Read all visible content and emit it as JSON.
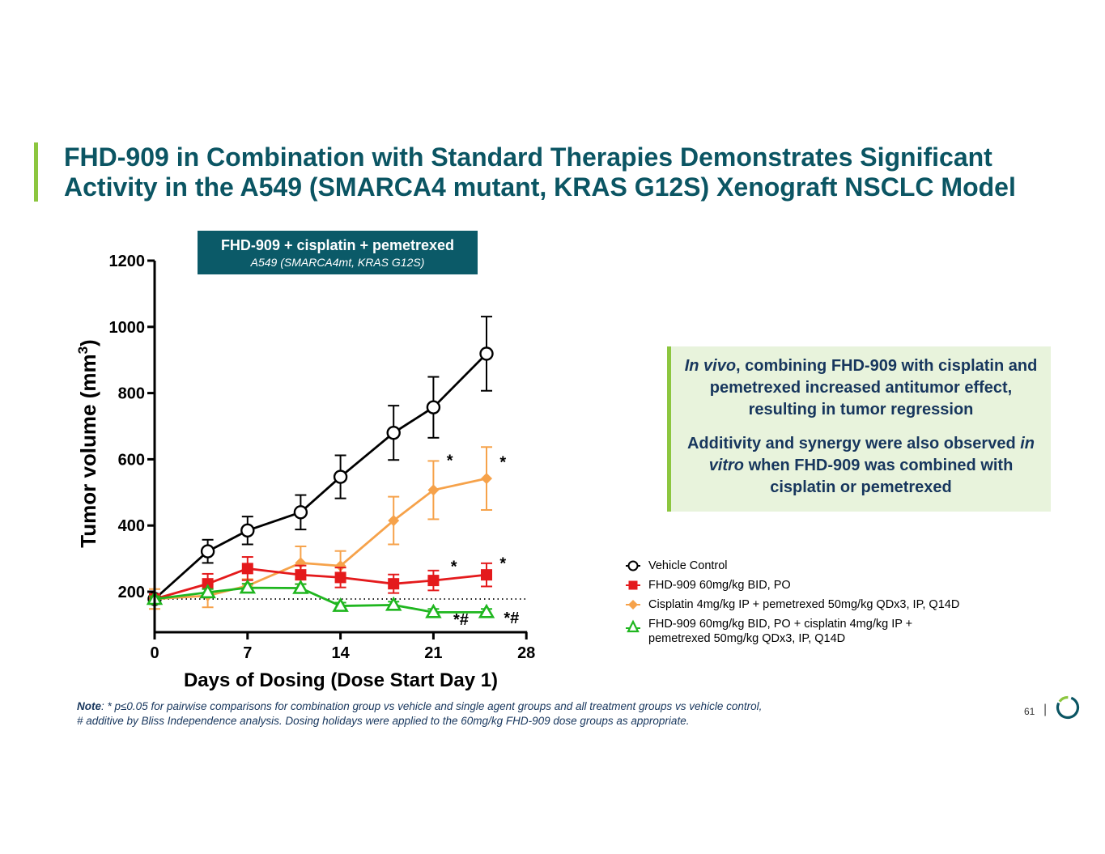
{
  "title": {
    "line1": "FHD-909 in Combination with Standard Therapies Demonstrates Significant",
    "line2": "Activity in the A549 (SMARCA4 mutant, KRAS G12S) Xenograft NSCLC Model"
  },
  "chart_badge": {
    "main": "FHD-909 + cisplatin + pemetrexed",
    "sub": "A549 (SMARCA4mt, KRAS G12S)"
  },
  "chart_data": {
    "type": "line",
    "title": "FHD-909 + cisplatin + pemetrexed",
    "subtitle": "A549 (SMARCA4mt, KRAS G12S)",
    "xlabel": "Days of Dosing (Dose Start Day 1)",
    "ylabel_main": "Tumor volume (mm",
    "ylabel_sup": "3",
    "ylabel_close": ")",
    "xlim": [
      0,
      28
    ],
    "ylim": [
      80,
      1200
    ],
    "xticks": [
      "0",
      "7",
      "14",
      "21",
      "28"
    ],
    "yticks": [
      "200",
      "400",
      "600",
      "800",
      "1000",
      "1200"
    ],
    "baseline": 178,
    "series": [
      {
        "name": "Vehicle Control",
        "color": "#000000",
        "marker": "circle-open",
        "x": [
          0,
          4,
          7,
          11,
          14,
          18,
          21,
          25
        ],
        "values": [
          178,
          322,
          385,
          440,
          547,
          680,
          757,
          919
        ],
        "err": [
          15,
          35,
          42,
          52,
          65,
          82,
          92,
          112
        ]
      },
      {
        "name": "FHD-909 60mg/kg BID, PO",
        "color": "#e41a1c",
        "marker": "square",
        "x": [
          0,
          4,
          7,
          11,
          14,
          18,
          21,
          25
        ],
        "values": [
          178,
          224,
          270,
          251,
          243,
          224,
          234,
          251
        ],
        "err": [
          15,
          30,
          35,
          28,
          30,
          28,
          30,
          35
        ]
      },
      {
        "name": "Cisplatin 4mg/kg IP + pemetrexed 50mg/kg QDx3, IP, Q14D",
        "color": "#f6a24a",
        "marker": "diamond",
        "x": [
          0,
          4,
          7,
          11,
          14,
          18,
          21,
          25
        ],
        "values": [
          178,
          188,
          218,
          287,
          278,
          415,
          507,
          542
        ],
        "err": [
          30,
          35,
          20,
          50,
          45,
          72,
          88,
          95
        ]
      },
      {
        "name": "FHD-909 60mg/kg BID, PO + cisplatin 4mg/kg IP + pemetrexed 50mg/kg QDx3, IP, Q14D",
        "color": "#1fb61f",
        "marker": "triangle-open",
        "x": [
          0,
          4,
          7,
          11,
          14,
          18,
          21,
          25
        ],
        "values": [
          178,
          198,
          212,
          211,
          157,
          160,
          138,
          138
        ],
        "err": [
          8,
          10,
          12,
          12,
          10,
          10,
          10,
          10
        ]
      }
    ],
    "annotations": [
      {
        "text": "*",
        "x": 22,
        "y": 580,
        "series": "Cisplatin"
      },
      {
        "text": "*",
        "x": 26,
        "y": 575,
        "series": "Cisplatin"
      },
      {
        "text": "*",
        "x": 22.3,
        "y": 260,
        "series": "FHD-909"
      },
      {
        "text": "*",
        "x": 26,
        "y": 270,
        "series": "FHD-909"
      },
      {
        "text": "*#",
        "x": 22.5,
        "y": 100,
        "series": "Combination"
      },
      {
        "text": "*#",
        "x": 26.3,
        "y": 105,
        "series": "Combination"
      }
    ]
  },
  "callout": {
    "p1_italic": "In vivo",
    "p1_rest": ", combining FHD-909 with cisplatin and pemetrexed increased antitumor effect, resulting in tumor regression",
    "p2_a": "Additivity and synergy were also observed ",
    "p2_italic": "in vitro",
    "p2_b": " when FHD-909 was combined with cisplatin or pemetrexed"
  },
  "legend": {
    "items": [
      "Vehicle Control",
      "FHD-909 60mg/kg BID, PO",
      "Cisplatin 4mg/kg IP + pemetrexed 50mg/kg QDx3, IP, Q14D",
      "FHD-909 60mg/kg BID, PO + cisplatin 4mg/kg IP + pemetrexed 50mg/kg QDx3, IP, Q14D"
    ]
  },
  "note": {
    "label": "Note",
    "line1": ": * p≤0.05 for pairwise comparisons for combination group vs vehicle and single agent groups and all treatment groups vs vehicle control,",
    "line2": " # additive by Bliss Independence analysis. Dosing holidays were applied to the 60mg/kg FHD-909 dose groups as appropriate."
  },
  "footer": {
    "page_number": "61",
    "separator": "|"
  },
  "colors": {
    "title": "#0b5563",
    "accent_green": "#8cc63f",
    "badge_bg": "#0b5a68",
    "callout_bg": "#e8f3dc",
    "callout_text": "#17365d"
  }
}
